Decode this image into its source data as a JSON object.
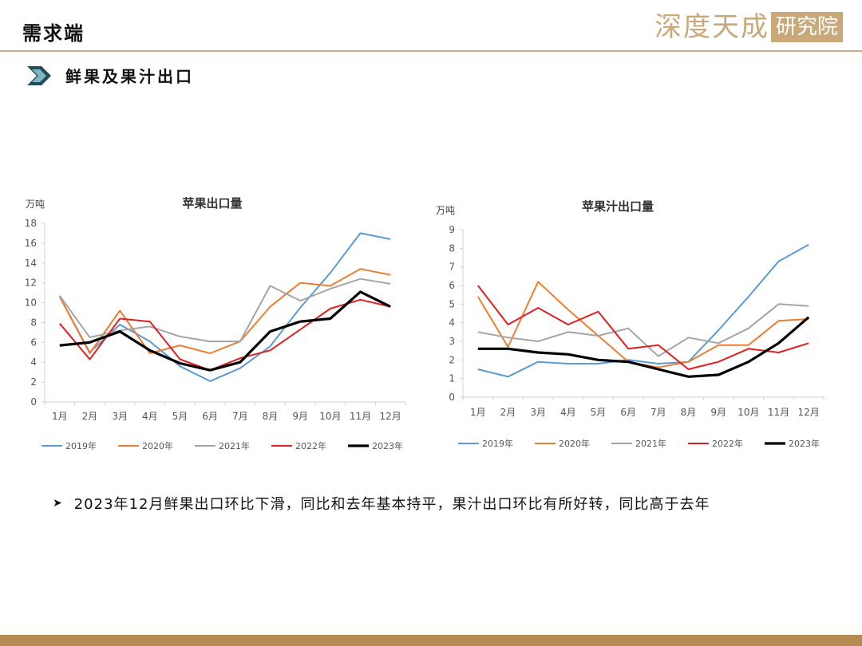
{
  "header": {
    "title": "需求端",
    "logo_main": "深度天成",
    "logo_box": "研究院"
  },
  "section": {
    "label": "鲜果及果汁出口",
    "icon": "chevron-right-icon"
  },
  "colors": {
    "accent": "#c9b089",
    "footer": "#b58a52",
    "arrow_dark": "#1f4e5a",
    "arrow_light": "#7fb8c4"
  },
  "note": {
    "text": "2023年12月鲜果出口环比下滑，同比和去年基本持平，果汁出口环比有所好转，同比高于去年"
  },
  "chart_data": [
    {
      "type": "line",
      "title": "苹果出口量",
      "ylabel": "万吨",
      "xlabel": "",
      "categories": [
        "1月",
        "2月",
        "3月",
        "4月",
        "5月",
        "6月",
        "7月",
        "8月",
        "9月",
        "10月",
        "11月",
        "12月"
      ],
      "ylim": [
        0,
        18
      ],
      "yticks": [
        0,
        2,
        4,
        6,
        8,
        10,
        12,
        14,
        16,
        18
      ],
      "grid": false,
      "legend": "bottom",
      "series": [
        {
          "name": "2019年",
          "color": "#5b9bd5",
          "width": 2,
          "values": [
            10.6,
            5.0,
            7.8,
            6.1,
            3.6,
            2.1,
            3.4,
            5.6,
            9.5,
            13.0,
            17.0,
            16.4
          ]
        },
        {
          "name": "2020年",
          "color": "#ed7d31",
          "width": 2,
          "values": [
            10.6,
            4.9,
            9.2,
            4.9,
            5.7,
            4.9,
            6.1,
            9.6,
            12.0,
            11.7,
            13.4,
            12.8
          ]
        },
        {
          "name": "2021年",
          "color": "#a5a5a5",
          "width": 2,
          "values": [
            10.7,
            6.5,
            7.2,
            7.6,
            6.6,
            6.1,
            6.1,
            11.7,
            10.2,
            11.4,
            12.4,
            11.9
          ]
        },
        {
          "name": "2022年",
          "color": "#e02020",
          "width": 2,
          "values": [
            7.9,
            4.3,
            8.4,
            8.1,
            4.3,
            3.2,
            4.4,
            5.2,
            7.3,
            9.4,
            10.3,
            9.6
          ]
        },
        {
          "name": "2023年",
          "color": "#000000",
          "width": 3.2,
          "values": [
            5.7,
            6.0,
            7.1,
            5.2,
            3.9,
            3.2,
            4.0,
            7.1,
            8.1,
            8.4,
            11.1,
            9.6
          ]
        }
      ]
    },
    {
      "type": "line",
      "title": "苹果汁出口量",
      "ylabel": "万吨",
      "xlabel": "",
      "categories": [
        "1月",
        "2月",
        "3月",
        "4月",
        "5月",
        "6月",
        "7月",
        "8月",
        "9月",
        "10月",
        "11月",
        "12月"
      ],
      "ylim": [
        0,
        9
      ],
      "yticks": [
        0,
        1,
        2,
        3,
        4,
        5,
        6,
        7,
        8,
        9
      ],
      "grid": false,
      "legend": "bottom",
      "series": [
        {
          "name": "2019年",
          "color": "#5b9bd5",
          "width": 2,
          "values": [
            1.5,
            1.1,
            1.9,
            1.8,
            1.8,
            2.0,
            1.8,
            1.9,
            3.6,
            5.4,
            7.3,
            8.2
          ]
        },
        {
          "name": "2020年",
          "color": "#ed7d31",
          "width": 2,
          "values": [
            5.4,
            2.7,
            6.2,
            4.7,
            3.3,
            1.9,
            1.6,
            1.9,
            2.8,
            2.8,
            4.1,
            4.2
          ]
        },
        {
          "name": "2021年",
          "color": "#a5a5a5",
          "width": 2,
          "values": [
            3.5,
            3.2,
            3.0,
            3.5,
            3.3,
            3.7,
            2.2,
            3.2,
            2.9,
            3.7,
            5.0,
            4.9
          ]
        },
        {
          "name": "2022年",
          "color": "#e02020",
          "width": 2,
          "values": [
            6.0,
            3.9,
            4.8,
            3.9,
            4.6,
            2.6,
            2.8,
            1.5,
            1.9,
            2.6,
            2.4,
            2.9
          ]
        },
        {
          "name": "2023年",
          "color": "#000000",
          "width": 3.2,
          "values": [
            2.6,
            2.6,
            2.4,
            2.3,
            2.0,
            1.9,
            1.5,
            1.1,
            1.2,
            1.9,
            2.9,
            4.3
          ]
        }
      ]
    }
  ]
}
